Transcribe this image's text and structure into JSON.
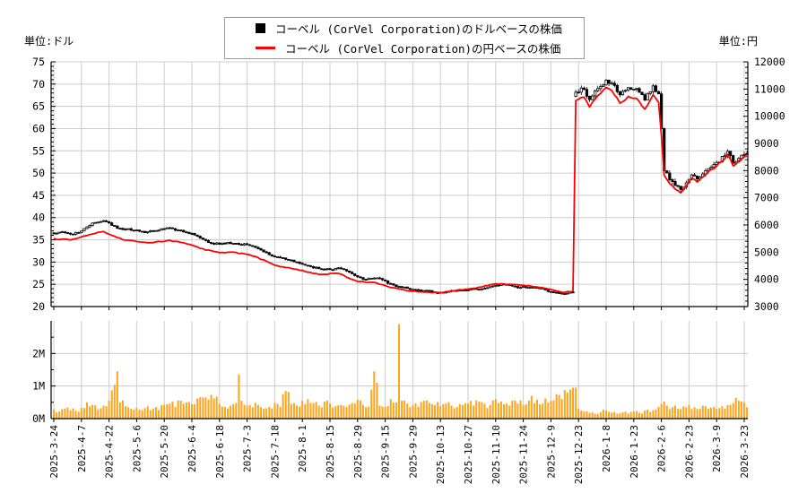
{
  "units": {
    "left": "単位:ドル",
    "right": "単位:円"
  },
  "legend": {
    "series1": "コーベル (CorVel Corporation)のドルベースの株価",
    "series2": "コーベル (CorVel Corporation)の円ベースの株価"
  },
  "colors": {
    "usd_series": "#000000",
    "jpy_series": "#ff0000",
    "volume_bar": "#ffa41c",
    "grid": "#cccccc",
    "axis": "#000000",
    "background": "#ffffff"
  },
  "chart_data": [
    {
      "type": "candlestick+line",
      "n_points": 252,
      "x_tick_indices": [
        0,
        10,
        20,
        30,
        40,
        50,
        60,
        70,
        80,
        90,
        100,
        110,
        120,
        130,
        140,
        150,
        160,
        170,
        180,
        190,
        200,
        210,
        220,
        230,
        240,
        250
      ],
      "x_tick_labels": [
        "2025-3-24",
        "2025-4-7",
        "2025-4-22",
        "2025-5-6",
        "2025-5-20",
        "2025-6-4",
        "2025-6-18",
        "2025-7-3",
        "2025-7-18",
        "2025-8-1",
        "2025-8-15",
        "2025-8-29",
        "2025-9-15",
        "2025-9-29",
        "2025-10-13",
        "2025-10-27",
        "2025-11-10",
        "2025-11-24",
        "2025-12-9",
        "2025-12-23",
        "2026-1-8",
        "2026-1-23",
        "2026-2-6",
        "2026-2-23",
        "2026-3-9",
        "2026-3-23"
      ],
      "left_axis": {
        "title": "単位:ドル",
        "min": 20,
        "max": 75,
        "major_step": 5,
        "minor_step": 1
      },
      "right_axis": {
        "title": "単位:円",
        "min": 3000,
        "max": 12000,
        "major_step": 1000,
        "minor_step": 200
      },
      "grid": true,
      "legend_position": "top-center",
      "series": [
        {
          "name": "コーベル (CorVel Corporation)のドルベースの株価",
          "style": "candlestick",
          "axis": "left",
          "color": "#000000",
          "close_anchors": [
            [
              0,
              36.4
            ],
            [
              3,
              36.8
            ],
            [
              6,
              36.3
            ],
            [
              9,
              36.6
            ],
            [
              12,
              37.9
            ],
            [
              15,
              38.9
            ],
            [
              18,
              39.3
            ],
            [
              20,
              38.8
            ],
            [
              23,
              37.6
            ],
            [
              26,
              37.4
            ],
            [
              30,
              37.2
            ],
            [
              33,
              36.6
            ],
            [
              36,
              37.0
            ],
            [
              39,
              37.5
            ],
            [
              42,
              37.7
            ],
            [
              45,
              37.2
            ],
            [
              48,
              36.7
            ],
            [
              50,
              36.4
            ],
            [
              53,
              35.4
            ],
            [
              56,
              34.4
            ],
            [
              60,
              34.0
            ],
            [
              63,
              34.4
            ],
            [
              66,
              34.2
            ],
            [
              70,
              33.9
            ],
            [
              73,
              33.3
            ],
            [
              76,
              32.3
            ],
            [
              80,
              31.2
            ],
            [
              84,
              30.6
            ],
            [
              88,
              30.0
            ],
            [
              92,
              29.2
            ],
            [
              96,
              28.5
            ],
            [
              100,
              28.3
            ],
            [
              103,
              28.7
            ],
            [
              106,
              28.0
            ],
            [
              110,
              26.7
            ],
            [
              113,
              26.1
            ],
            [
              116,
              26.4
            ],
            [
              119,
              26.0
            ],
            [
              122,
              25.1
            ],
            [
              125,
              24.5
            ],
            [
              128,
              24.1
            ],
            [
              131,
              23.8
            ],
            [
              134,
              23.6
            ],
            [
              137,
              23.3
            ],
            [
              140,
              23.2
            ],
            [
              143,
              23.4
            ],
            [
              146,
              23.6
            ],
            [
              150,
              23.7
            ],
            [
              153,
              23.9
            ],
            [
              156,
              24.1
            ],
            [
              160,
              24.8
            ],
            [
              163,
              25.0
            ],
            [
              166,
              24.6
            ],
            [
              169,
              24.3
            ],
            [
              172,
              24.3
            ],
            [
              175,
              24.1
            ],
            [
              178,
              23.7
            ],
            [
              181,
              23.2
            ],
            [
              184,
              22.8
            ],
            [
              186,
              23.0
            ],
            [
              188,
              23.2
            ],
            [
              189,
              68.2
            ],
            [
              192,
              68.8
            ],
            [
              194,
              66.5
            ],
            [
              197,
              69.0
            ],
            [
              200,
              70.9
            ],
            [
              202,
              70.2
            ],
            [
              205,
              67.6
            ],
            [
              208,
              69.2
            ],
            [
              211,
              69.0
            ],
            [
              214,
              66.4
            ],
            [
              217,
              69.6
            ],
            [
              219,
              67.8
            ],
            [
              220,
              60.0
            ],
            [
              221,
              50.5
            ],
            [
              223,
              48.5
            ],
            [
              225,
              47.2
            ],
            [
              227,
              46.3
            ],
            [
              229,
              47.8
            ],
            [
              231,
              49.6
            ],
            [
              233,
              48.7
            ],
            [
              235,
              49.8
            ],
            [
              237,
              51.0
            ],
            [
              240,
              52.4
            ],
            [
              243,
              54.0
            ],
            [
              244,
              54.9
            ],
            [
              246,
              52.2
            ],
            [
              248,
              53.3
            ],
            [
              250,
              54.2
            ],
            [
              251,
              54.4
            ]
          ]
        },
        {
          "name": "コーベル (CorVel Corporation)の円ベースの株価",
          "style": "line",
          "axis": "right",
          "color": "#ff0000",
          "close_anchors": [
            [
              0,
              5500
            ],
            [
              6,
              5450
            ],
            [
              12,
              5610
            ],
            [
              18,
              5760
            ],
            [
              20,
              5660
            ],
            [
              26,
              5440
            ],
            [
              30,
              5390
            ],
            [
              36,
              5350
            ],
            [
              42,
              5440
            ],
            [
              48,
              5310
            ],
            [
              53,
              5140
            ],
            [
              60,
              4980
            ],
            [
              66,
              4990
            ],
            [
              73,
              4840
            ],
            [
              80,
              4520
            ],
            [
              88,
              4370
            ],
            [
              96,
              4180
            ],
            [
              103,
              4220
            ],
            [
              110,
              3920
            ],
            [
              116,
              3890
            ],
            [
              122,
              3700
            ],
            [
              128,
              3580
            ],
            [
              134,
              3530
            ],
            [
              140,
              3510
            ],
            [
              146,
              3600
            ],
            [
              153,
              3680
            ],
            [
              160,
              3840
            ],
            [
              166,
              3810
            ],
            [
              172,
              3770
            ],
            [
              178,
              3670
            ],
            [
              184,
              3520
            ],
            [
              188,
              3570
            ],
            [
              189,
              10570
            ],
            [
              192,
              10700
            ],
            [
              194,
              10340
            ],
            [
              197,
              10760
            ],
            [
              200,
              11060
            ],
            [
              202,
              10950
            ],
            [
              205,
              10480
            ],
            [
              208,
              10730
            ],
            [
              211,
              10660
            ],
            [
              214,
              10260
            ],
            [
              217,
              10790
            ],
            [
              219,
              10510
            ],
            [
              220,
              9300
            ],
            [
              221,
              7830
            ],
            [
              223,
              7520
            ],
            [
              225,
              7320
            ],
            [
              227,
              7180
            ],
            [
              229,
              7420
            ],
            [
              231,
              7710
            ],
            [
              233,
              7580
            ],
            [
              235,
              7770
            ],
            [
              237,
              7960
            ],
            [
              240,
              8170
            ],
            [
              243,
              8440
            ],
            [
              244,
              8590
            ],
            [
              246,
              8170
            ],
            [
              248,
              8360
            ],
            [
              250,
              8510
            ],
            [
              251,
              8540
            ]
          ]
        }
      ]
    },
    {
      "type": "bar",
      "name": "volume",
      "unit": "M",
      "y_tick_labels": [
        "0M",
        "1M",
        "2M"
      ],
      "y_tick_values": [
        0,
        1,
        2
      ],
      "y_max": 3.0,
      "color": "#ffa41c",
      "value_anchors_millions": [
        [
          0,
          0.28
        ],
        [
          2,
          0.22
        ],
        [
          4,
          0.3
        ],
        [
          6,
          0.26
        ],
        [
          8,
          0.24
        ],
        [
          10,
          0.33
        ],
        [
          12,
          0.5
        ],
        [
          14,
          0.42
        ],
        [
          16,
          0.28
        ],
        [
          18,
          0.4
        ],
        [
          20,
          0.55
        ],
        [
          23,
          1.45
        ],
        [
          24,
          0.5
        ],
        [
          26,
          0.38
        ],
        [
          28,
          0.3
        ],
        [
          30,
          0.33
        ],
        [
          32,
          0.26
        ],
        [
          34,
          0.38
        ],
        [
          36,
          0.3
        ],
        [
          38,
          0.26
        ],
        [
          40,
          0.42
        ],
        [
          42,
          0.46
        ],
        [
          44,
          0.36
        ],
        [
          46,
          0.55
        ],
        [
          48,
          0.5
        ],
        [
          50,
          0.44
        ],
        [
          52,
          0.62
        ],
        [
          54,
          0.65
        ],
        [
          56,
          0.58
        ],
        [
          58,
          0.62
        ],
        [
          60,
          0.45
        ],
        [
          62,
          0.36
        ],
        [
          64,
          0.4
        ],
        [
          66,
          0.48
        ],
        [
          67,
          1.35
        ],
        [
          68,
          0.55
        ],
        [
          70,
          0.4
        ],
        [
          72,
          0.35
        ],
        [
          74,
          0.42
        ],
        [
          76,
          0.3
        ],
        [
          78,
          0.36
        ],
        [
          80,
          0.48
        ],
        [
          82,
          0.36
        ],
        [
          84,
          0.85
        ],
        [
          86,
          0.45
        ],
        [
          88,
          0.4
        ],
        [
          90,
          0.55
        ],
        [
          92,
          0.6
        ],
        [
          94,
          0.48
        ],
        [
          96,
          0.4
        ],
        [
          98,
          0.52
        ],
        [
          100,
          0.46
        ],
        [
          102,
          0.38
        ],
        [
          104,
          0.42
        ],
        [
          106,
          0.36
        ],
        [
          108,
          0.48
        ],
        [
          110,
          0.58
        ],
        [
          112,
          0.42
        ],
        [
          114,
          0.36
        ],
        [
          116,
          1.45
        ],
        [
          118,
          0.4
        ],
        [
          120,
          0.36
        ],
        [
          122,
          0.6
        ],
        [
          124,
          0.5
        ],
        [
          125,
          2.9
        ],
        [
          126,
          0.55
        ],
        [
          128,
          0.46
        ],
        [
          130,
          0.4
        ],
        [
          132,
          0.36
        ],
        [
          134,
          0.55
        ],
        [
          136,
          0.48
        ],
        [
          138,
          0.42
        ],
        [
          140,
          0.38
        ],
        [
          142,
          0.46
        ],
        [
          144,
          0.4
        ],
        [
          146,
          0.36
        ],
        [
          148,
          0.42
        ],
        [
          150,
          0.46
        ],
        [
          152,
          0.4
        ],
        [
          154,
          0.52
        ],
        [
          156,
          0.46
        ],
        [
          158,
          0.42
        ],
        [
          160,
          0.6
        ],
        [
          162,
          0.52
        ],
        [
          164,
          0.46
        ],
        [
          166,
          0.55
        ],
        [
          168,
          0.46
        ],
        [
          170,
          0.42
        ],
        [
          172,
          0.55
        ],
        [
          173,
          0.7
        ],
        [
          174,
          0.48
        ],
        [
          176,
          0.44
        ],
        [
          178,
          0.62
        ],
        [
          180,
          0.55
        ],
        [
          182,
          0.75
        ],
        [
          184,
          0.6
        ],
        [
          186,
          0.8
        ],
        [
          188,
          0.95
        ],
        [
          189,
          0.95
        ],
        [
          190,
          0.3
        ],
        [
          192,
          0.22
        ],
        [
          194,
          0.18
        ],
        [
          196,
          0.15
        ],
        [
          198,
          0.2
        ],
        [
          200,
          0.25
        ],
        [
          202,
          0.18
        ],
        [
          204,
          0.15
        ],
        [
          206,
          0.2
        ],
        [
          208,
          0.16
        ],
        [
          210,
          0.22
        ],
        [
          212,
          0.18
        ],
        [
          214,
          0.25
        ],
        [
          216,
          0.2
        ],
        [
          218,
          0.28
        ],
        [
          220,
          0.45
        ],
        [
          222,
          0.4
        ],
        [
          224,
          0.35
        ],
        [
          226,
          0.3
        ],
        [
          228,
          0.38
        ],
        [
          230,
          0.42
        ],
        [
          232,
          0.35
        ],
        [
          234,
          0.3
        ],
        [
          236,
          0.38
        ],
        [
          238,
          0.34
        ],
        [
          240,
          0.3
        ],
        [
          242,
          0.38
        ],
        [
          244,
          0.42
        ],
        [
          246,
          0.48
        ],
        [
          248,
          0.55
        ],
        [
          250,
          0.5
        ],
        [
          251,
          0.35
        ]
      ]
    }
  ]
}
